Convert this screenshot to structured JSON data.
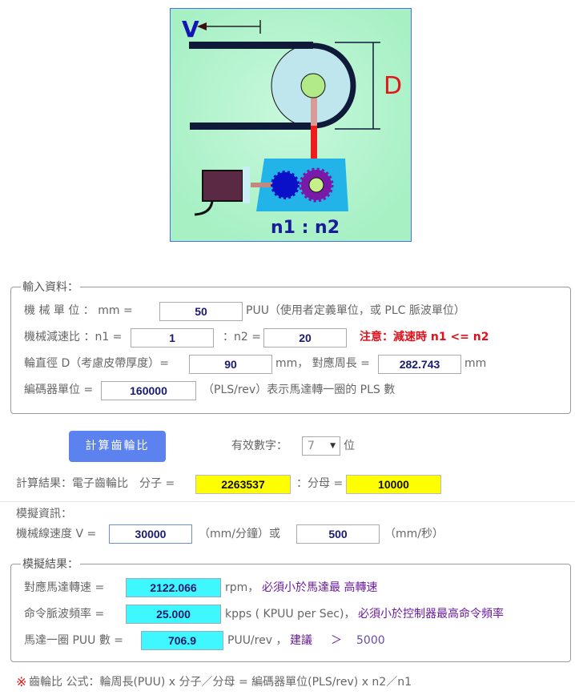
{
  "diagram": {
    "v_label": "V",
    "d_label": "D",
    "ratio_label": "n1 : n2"
  },
  "input_section": {
    "legend": "輸入資料：",
    "mech_unit": {
      "label": "機 械 單 位 ：  mm   =",
      "value": "50",
      "suffix": "PUU（使用者定義單位，或 PLC 脈波單位）"
    },
    "reduction": {
      "label": "機械減速比 ：n1 =",
      "n1": "1",
      "n2_label": "：n2 =",
      "n2": "20",
      "warning": "注意：減速時 n1 <= n2"
    },
    "diameter": {
      "label": "輪直徑 D（考慮皮帶厚度）=",
      "value": "90",
      "mid": "mm， 對應周長 =",
      "circumference": "282.743",
      "unit": "mm"
    },
    "encoder": {
      "label": "編碼器單位 =",
      "value": "160000",
      "suffix": "（PLS/rev）表示馬達轉一圈的 PLS 數"
    }
  },
  "calc_button": "計算齒輪比",
  "digits": {
    "label": "有效數字：",
    "value": "7",
    "suffix": "位"
  },
  "result": {
    "label": "計算結果：電子齒輪比　分子 =",
    "numerator": "2263537",
    "den_label": "：分母 =",
    "denominator": "10000"
  },
  "sim_info": {
    "title": "模擬資訊：",
    "speed_label": "機械線速度 V =",
    "speed_mm_min": "30000",
    "unit1": "（mm/分鐘）或",
    "speed_mm_s": "500",
    "unit2": "（mm/秒）"
  },
  "sim_result": {
    "legend": "模擬結果：",
    "motor_speed": {
      "label": "對應馬達轉速 =",
      "value": "2122.066",
      "unit": "rpm，",
      "note": "必須小於馬達最 高轉速"
    },
    "pulse_freq": {
      "label": "命令脈波頻率 =",
      "value": "25.000",
      "unit": "kpps ( KPUU per Sec)，",
      "note": "必須小於控制器最高命令頻率"
    },
    "puu_per_rev": {
      "label": "馬達一圈 PUU 數 =",
      "value": "706.9",
      "unit": "PUU/rev ，",
      "note": "建議",
      "gt": "＞",
      "rec": "5000"
    }
  },
  "footnote": {
    "mark": "※",
    "text": "齒輪比 公式：輪周長(PUU) x 分子／分母 = 編碼器單位(PLS/rev) x n2／n1"
  }
}
